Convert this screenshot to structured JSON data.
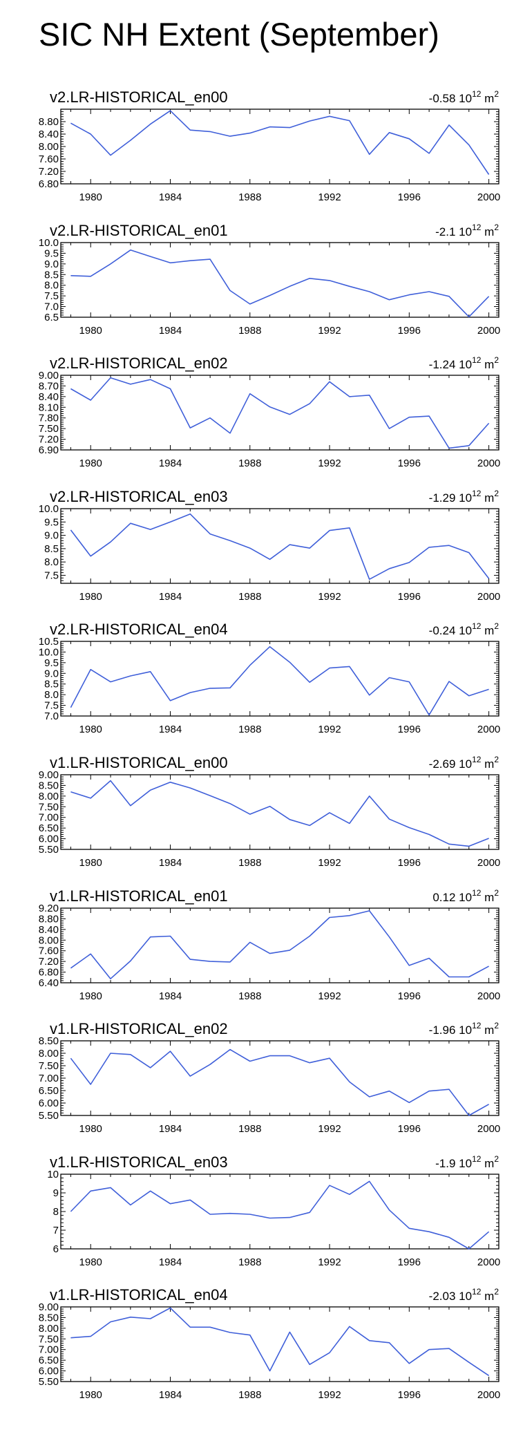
{
  "title": "SIC NH Extent (September)",
  "colors": {
    "line": "#3f5fd9",
    "axis": "#000000",
    "background": "#ffffff"
  },
  "chart_data": [
    {
      "type": "line",
      "title": "v2.LR-HISTORICAL_en00",
      "trend_value": "-0.58",
      "trend_base": "10",
      "trend_exp": "12",
      "trend_unit": "m",
      "trend_unit_exp": "2",
      "x": [
        1979,
        1980,
        1981,
        1982,
        1983,
        1984,
        1985,
        1986,
        1987,
        1988,
        1989,
        1990,
        1991,
        1992,
        1993,
        1994,
        1995,
        1996,
        1997,
        1998,
        1999,
        2000
      ],
      "values": [
        8.75,
        8.4,
        7.72,
        8.2,
        8.72,
        9.15,
        8.53,
        8.48,
        8.33,
        8.43,
        8.63,
        8.61,
        8.82,
        8.97,
        8.83,
        7.75,
        8.45,
        8.25,
        7.78,
        8.69,
        8.05,
        7.1
      ],
      "ylim": [
        6.8,
        9.2
      ],
      "yticks": [
        "6.80",
        "7.20",
        "7.60",
        "8.00",
        "8.40",
        "8.80"
      ],
      "xlim": [
        1978.5,
        2000.5
      ],
      "xticks": [
        "1980",
        "1984",
        "1988",
        "1992",
        "1996",
        "2000"
      ]
    },
    {
      "type": "line",
      "title": "v2.LR-HISTORICAL_en01",
      "trend_value": "-2.1",
      "trend_base": "10",
      "trend_exp": "12",
      "trend_unit": "m",
      "trend_unit_exp": "2",
      "x": [
        1979,
        1980,
        1981,
        1982,
        1983,
        1984,
        1985,
        1986,
        1987,
        1988,
        1989,
        1990,
        1991,
        1992,
        1993,
        1994,
        1995,
        1996,
        1997,
        1998,
        1999,
        2000
      ],
      "values": [
        8.45,
        8.42,
        9.0,
        9.65,
        9.35,
        9.05,
        9.15,
        9.22,
        7.75,
        7.12,
        7.52,
        7.95,
        8.32,
        8.22,
        7.95,
        7.7,
        7.32,
        7.55,
        7.7,
        7.48,
        6.52,
        7.48
      ],
      "ylim": [
        6.5,
        10.0
      ],
      "yticks": [
        "6.5",
        "7.0",
        "7.5",
        "8.0",
        "8.5",
        "9.0",
        "9.5",
        "10.0"
      ],
      "xlim": [
        1978.5,
        2000.5
      ],
      "xticks": [
        "1980",
        "1984",
        "1988",
        "1992",
        "1996",
        "2000"
      ]
    },
    {
      "type": "line",
      "title": "v2.LR-HISTORICAL_en02",
      "trend_value": "-1.24",
      "trend_base": "10",
      "trend_exp": "12",
      "trend_unit": "m",
      "trend_unit_exp": "2",
      "x": [
        1979,
        1980,
        1981,
        1982,
        1983,
        1984,
        1985,
        1986,
        1987,
        1988,
        1989,
        1990,
        1991,
        1992,
        1993,
        1994,
        1995,
        1996,
        1997,
        1998,
        1999,
        2000
      ],
      "values": [
        8.62,
        8.3,
        8.93,
        8.75,
        8.88,
        8.62,
        7.52,
        7.8,
        7.37,
        8.48,
        8.11,
        7.9,
        8.2,
        8.82,
        8.4,
        8.44,
        7.5,
        7.82,
        7.85,
        6.95,
        7.02,
        7.65
      ],
      "ylim": [
        6.9,
        9.0
      ],
      "yticks": [
        "6.90",
        "7.20",
        "7.50",
        "7.80",
        "8.10",
        "8.40",
        "8.70",
        "9.00"
      ],
      "xlim": [
        1978.5,
        2000.5
      ],
      "xticks": [
        "1980",
        "1984",
        "1988",
        "1992",
        "1996",
        "2000"
      ]
    },
    {
      "type": "line",
      "title": "v2.LR-HISTORICAL_en03",
      "trend_value": "-1.29",
      "trend_base": "10",
      "trend_exp": "12",
      "trend_unit": "m",
      "trend_unit_exp": "2",
      "x": [
        1979,
        1980,
        1981,
        1982,
        1983,
        1984,
        1985,
        1986,
        1987,
        1988,
        1989,
        1990,
        1991,
        1992,
        1993,
        1994,
        1995,
        1996,
        1997,
        1998,
        1999,
        2000
      ],
      "values": [
        9.2,
        8.22,
        8.75,
        9.45,
        9.22,
        9.5,
        9.8,
        9.05,
        8.8,
        8.52,
        8.1,
        8.65,
        8.52,
        9.18,
        9.28,
        7.35,
        7.75,
        7.98,
        8.55,
        8.62,
        8.35,
        7.38
      ],
      "ylim": [
        7.2,
        10.0
      ],
      "yticks": [
        "7.5",
        "8.0",
        "8.5",
        "9.0",
        "9.5",
        "10.0"
      ],
      "xlim": [
        1978.5,
        2000.5
      ],
      "xticks": [
        "1980",
        "1984",
        "1988",
        "1992",
        "1996",
        "2000"
      ]
    },
    {
      "type": "line",
      "title": "v2.LR-HISTORICAL_en04",
      "trend_value": "-0.24",
      "trend_base": "10",
      "trend_exp": "12",
      "trend_unit": "m",
      "trend_unit_exp": "2",
      "x": [
        1979,
        1980,
        1981,
        1982,
        1983,
        1984,
        1985,
        1986,
        1987,
        1988,
        1989,
        1990,
        1991,
        1992,
        1993,
        1994,
        1995,
        1996,
        1997,
        1998,
        1999,
        2000
      ],
      "values": [
        7.4,
        9.18,
        8.6,
        8.88,
        9.08,
        7.72,
        8.1,
        8.3,
        8.32,
        9.38,
        10.25,
        9.52,
        8.58,
        9.25,
        9.32,
        7.98,
        8.8,
        8.6,
        7.05,
        8.62,
        7.95,
        8.25
      ],
      "ylim": [
        7.0,
        10.5
      ],
      "yticks": [
        "7.0",
        "7.5",
        "8.0",
        "8.5",
        "9.0",
        "9.5",
        "10.0",
        "10.5"
      ],
      "xlim": [
        1978.5,
        2000.5
      ],
      "xticks": [
        "1980",
        "1984",
        "1988",
        "1992",
        "1996",
        "2000"
      ]
    },
    {
      "type": "line",
      "title": "v1.LR-HISTORICAL_en00",
      "trend_value": "-2.69",
      "trend_base": "10",
      "trend_exp": "12",
      "trend_unit": "m",
      "trend_unit_exp": "2",
      "x": [
        1979,
        1980,
        1981,
        1982,
        1983,
        1984,
        1985,
        1986,
        1987,
        1988,
        1989,
        1990,
        1991,
        1992,
        1993,
        1994,
        1995,
        1996,
        1997,
        1998,
        1999,
        2000
      ],
      "values": [
        8.2,
        7.9,
        8.72,
        7.55,
        8.28,
        8.65,
        8.38,
        8.02,
        7.65,
        7.15,
        7.52,
        6.9,
        6.62,
        7.22,
        6.72,
        8.0,
        6.92,
        6.52,
        6.2,
        5.75,
        5.65,
        6.02
      ],
      "ylim": [
        5.5,
        9.0
      ],
      "yticks": [
        "5.50",
        "6.00",
        "6.50",
        "7.00",
        "7.50",
        "8.00",
        "8.50",
        "9.00"
      ],
      "xlim": [
        1978.5,
        2000.5
      ],
      "xticks": [
        "1980",
        "1984",
        "1988",
        "1992",
        "1996",
        "2000"
      ]
    },
    {
      "type": "line",
      "title": "v1.LR-HISTORICAL_en01",
      "trend_value": "0.12",
      "trend_base": "10",
      "trend_exp": "12",
      "trend_unit": "m",
      "trend_unit_exp": "2",
      "x": [
        1979,
        1980,
        1981,
        1982,
        1983,
        1984,
        1985,
        1986,
        1987,
        1988,
        1989,
        1990,
        1991,
        1992,
        1993,
        1994,
        1995,
        1996,
        1997,
        1998,
        1999,
        2000
      ],
      "values": [
        6.95,
        7.48,
        6.55,
        7.22,
        8.12,
        8.15,
        7.28,
        7.2,
        7.18,
        7.92,
        7.5,
        7.62,
        8.15,
        8.85,
        8.92,
        9.1,
        8.12,
        7.05,
        7.32,
        6.62,
        6.62,
        7.02
      ],
      "ylim": [
        6.4,
        9.2
      ],
      "yticks": [
        "6.40",
        "6.80",
        "7.20",
        "7.60",
        "8.00",
        "8.40",
        "8.80",
        "9.20"
      ],
      "xlim": [
        1978.5,
        2000.5
      ],
      "xticks": [
        "1980",
        "1984",
        "1988",
        "1992",
        "1996",
        "2000"
      ]
    },
    {
      "type": "line",
      "title": "v1.LR-HISTORICAL_en02",
      "trend_value": "-1.96",
      "trend_base": "10",
      "trend_exp": "12",
      "trend_unit": "m",
      "trend_unit_exp": "2",
      "x": [
        1979,
        1980,
        1981,
        1982,
        1983,
        1984,
        1985,
        1986,
        1987,
        1988,
        1989,
        1990,
        1991,
        1992,
        1993,
        1994,
        1995,
        1996,
        1997,
        1998,
        1999,
        2000
      ],
      "values": [
        7.8,
        6.75,
        8.0,
        7.95,
        7.42,
        8.08,
        7.08,
        7.55,
        8.15,
        7.68,
        7.9,
        7.9,
        7.62,
        7.8,
        6.85,
        6.25,
        6.48,
        6.02,
        6.48,
        6.55,
        5.5,
        5.95
      ],
      "ylim": [
        5.5,
        8.5
      ],
      "yticks": [
        "5.50",
        "6.00",
        "6.50",
        "7.00",
        "7.50",
        "8.00",
        "8.50"
      ],
      "xlim": [
        1978.5,
        2000.5
      ],
      "xticks": [
        "1980",
        "1984",
        "1988",
        "1992",
        "1996",
        "2000"
      ]
    },
    {
      "type": "line",
      "title": "v1.LR-HISTORICAL_en03",
      "trend_value": "-1.9",
      "trend_base": "10",
      "trend_exp": "12",
      "trend_unit": "m",
      "trend_unit_exp": "2",
      "x": [
        1979,
        1980,
        1981,
        1982,
        1983,
        1984,
        1985,
        1986,
        1987,
        1988,
        1989,
        1990,
        1991,
        1992,
        1993,
        1994,
        1995,
        1996,
        1997,
        1998,
        1999,
        2000
      ],
      "values": [
        8.0,
        9.1,
        9.28,
        8.35,
        9.1,
        8.42,
        8.62,
        7.85,
        7.9,
        7.85,
        7.65,
        7.68,
        7.95,
        9.4,
        8.92,
        9.62,
        8.08,
        7.1,
        6.92,
        6.62,
        6.0,
        6.92
      ],
      "ylim": [
        6.0,
        10.0
      ],
      "yticks": [
        "6",
        "7",
        "8",
        "9",
        "10"
      ],
      "xlim": [
        1978.5,
        2000.5
      ],
      "xticks": [
        "1980",
        "1984",
        "1988",
        "1992",
        "1996",
        "2000"
      ]
    },
    {
      "type": "line",
      "title": "v1.LR-HISTORICAL_en04",
      "trend_value": "-2.03",
      "trend_base": "10",
      "trend_exp": "12",
      "trend_unit": "m",
      "trend_unit_exp": "2",
      "x": [
        1979,
        1980,
        1981,
        1982,
        1983,
        1984,
        1985,
        1986,
        1987,
        1988,
        1989,
        1990,
        1991,
        1992,
        1993,
        1994,
        1995,
        1996,
        1997,
        1998,
        1999,
        2000
      ],
      "values": [
        7.55,
        7.62,
        8.3,
        8.52,
        8.45,
        8.95,
        8.05,
        8.05,
        7.8,
        7.68,
        6.0,
        7.82,
        6.3,
        6.85,
        8.08,
        7.42,
        7.32,
        6.35,
        7.0,
        7.05,
        6.4,
        5.78
      ],
      "ylim": [
        5.5,
        9.0
      ],
      "yticks": [
        "5.50",
        "6.00",
        "6.50",
        "7.00",
        "7.50",
        "8.00",
        "8.50",
        "9.00"
      ],
      "xlim": [
        1978.5,
        2000.5
      ],
      "xticks": [
        "1980",
        "1984",
        "1988",
        "1992",
        "1996",
        "2000"
      ]
    }
  ]
}
